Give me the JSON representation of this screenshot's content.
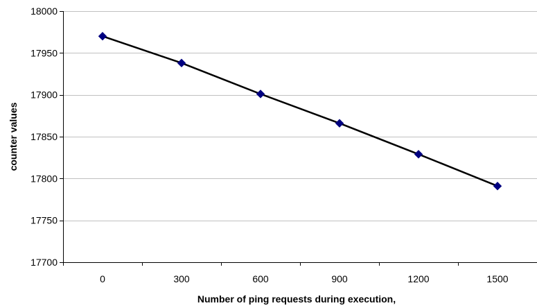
{
  "chart_data": {
    "type": "line",
    "title": "",
    "xlabel": "Number of ping requests during execution,",
    "ylabel": "counter values",
    "x": [
      0,
      300,
      600,
      900,
      1200,
      1500
    ],
    "categories": [
      "0",
      "300",
      "600",
      "900",
      "1200",
      "1500"
    ],
    "series": [
      {
        "values": [
          17970,
          17938,
          17901,
          17866,
          17829,
          17791
        ]
      }
    ],
    "ylim": [
      17700,
      18000
    ],
    "yticks": [
      17700,
      17750,
      17800,
      17850,
      17900,
      17950,
      18000
    ],
    "grid": "horizontal",
    "legend": "none",
    "colors": {
      "line": "#000000",
      "marker": "#000080",
      "grid": "#c0c0c0",
      "axis": "#000000"
    }
  }
}
